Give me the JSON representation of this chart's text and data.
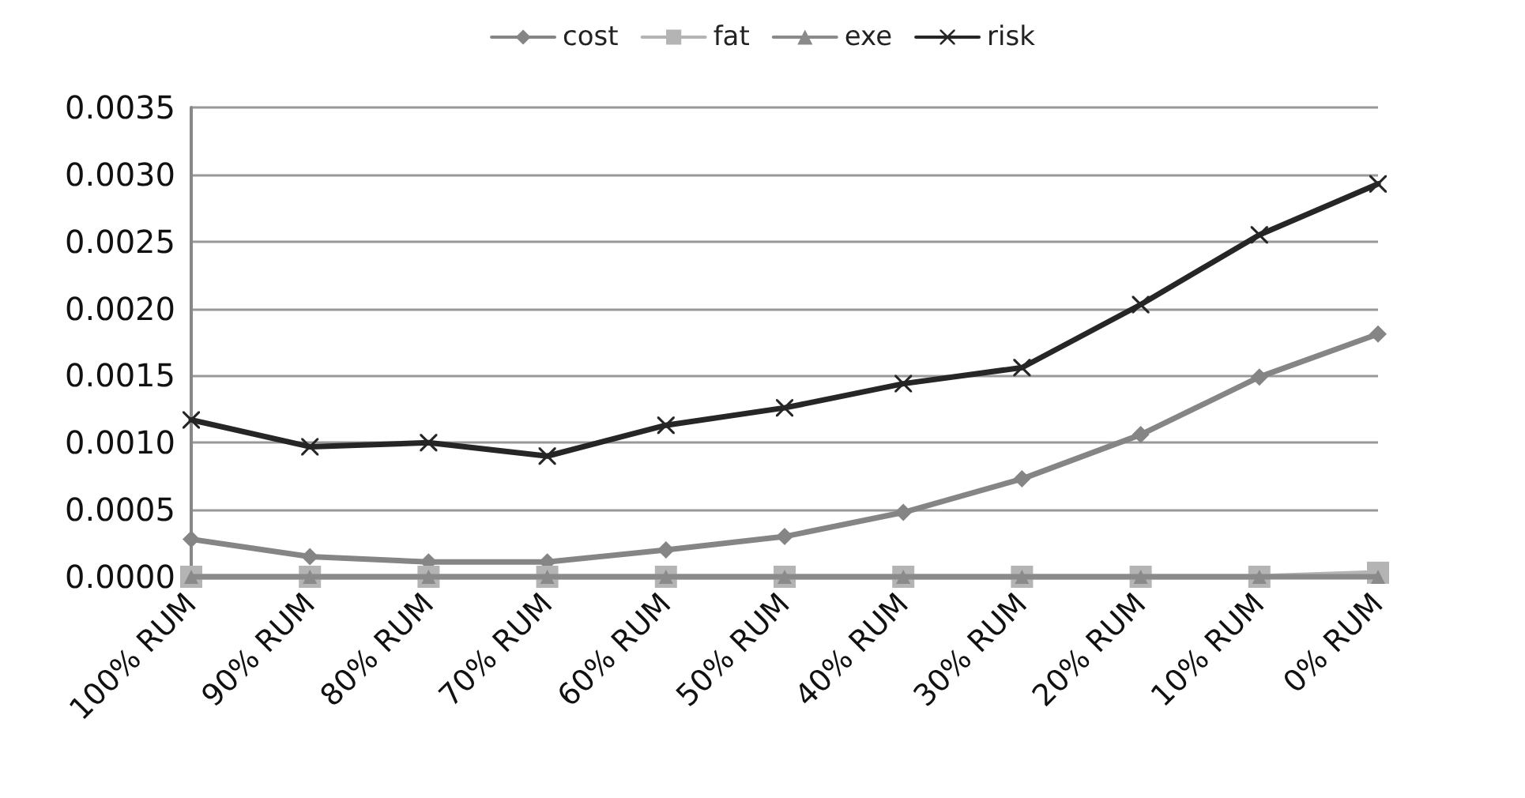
{
  "chart_data": {
    "type": "line",
    "categories": [
      "100% RUM",
      "90% RUM",
      "80% RUM",
      "70% RUM",
      "60% RUM",
      "50% RUM",
      "40% RUM",
      "30% RUM",
      "20% RUM",
      "10% RUM",
      "0% RUM"
    ],
    "series": [
      {
        "name": "cost",
        "color": "#858585",
        "marker": "diamond",
        "values": [
          0.00028,
          0.00015,
          0.00011,
          0.00011,
          0.0002,
          0.0003,
          0.00048,
          0.00073,
          0.00106,
          0.00149,
          0.00181
        ]
      },
      {
        "name": "fat",
        "color": "#b4b4b4",
        "marker": "square",
        "values": [
          0,
          0,
          0,
          0,
          0,
          0,
          0,
          0,
          0,
          0,
          3e-05
        ]
      },
      {
        "name": "exe",
        "color": "#8a8a8a",
        "marker": "triangle",
        "values": [
          0,
          0,
          0,
          0,
          0,
          0,
          0,
          0,
          0,
          0,
          0
        ]
      },
      {
        "name": "risk",
        "color": "#262626",
        "marker": "cross",
        "values": [
          0.00117,
          0.00097,
          0.001,
          0.0009,
          0.00113,
          0.00126,
          0.00144,
          0.00156,
          0.00203,
          0.00255,
          0.00293
        ]
      }
    ],
    "ylim": [
      0,
      0.0035
    ],
    "yticks": [
      {
        "value": 0,
        "label": "0.0000"
      },
      {
        "value": 0.0005,
        "label": "0.0005"
      },
      {
        "value": 0.001,
        "label": "0.0010"
      },
      {
        "value": 0.0015,
        "label": "0.0015"
      },
      {
        "value": 0.002,
        "label": "0.0020"
      },
      {
        "value": 0.0025,
        "label": "0.0025"
      },
      {
        "value": 0.003,
        "label": "0.0030"
      },
      {
        "value": 0.0035,
        "label": "0.0035"
      }
    ],
    "grid": "y",
    "legend": "top",
    "line_style": "solid"
  }
}
